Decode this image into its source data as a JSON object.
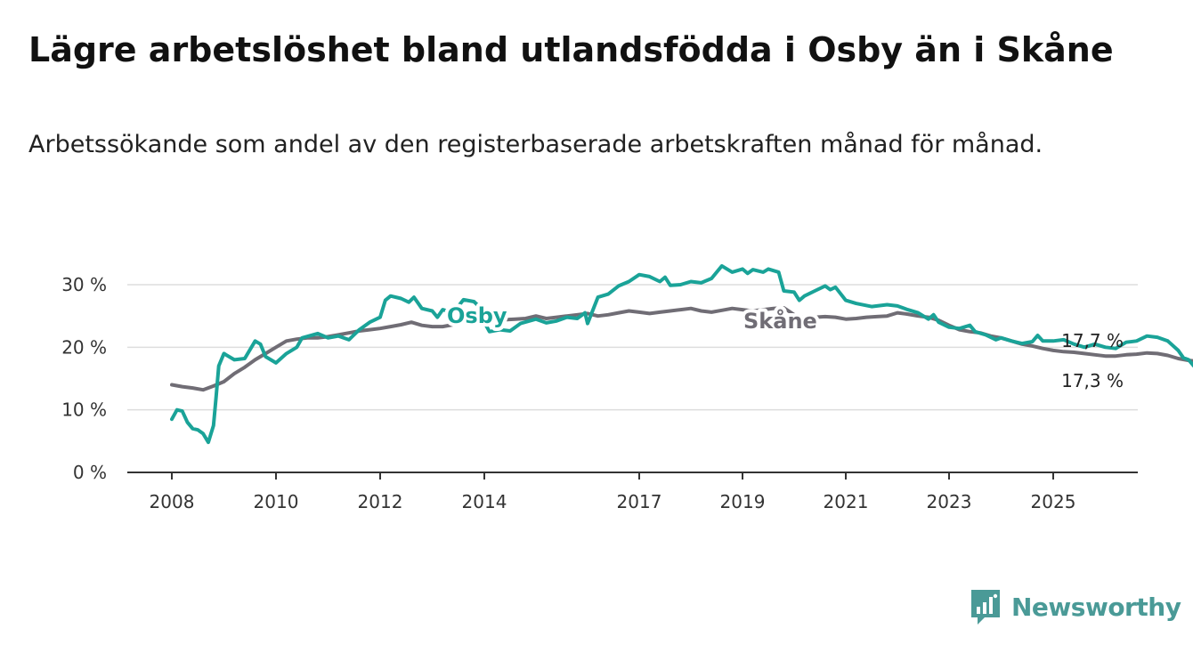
{
  "header": {
    "title": "Lägre arbetslöshet bland utlandsfödda i Osby än i Skåne",
    "subtitle": "Arbetssökande som andel av den registerbaserade arbetskraften månad för månad."
  },
  "brand": {
    "name": "Newsworthy",
    "icon": "newsworthy-logo-icon"
  },
  "colors": {
    "osby": "#1aa398",
    "skane": "#706d75",
    "grid": "#dddddd",
    "axis": "#333333"
  },
  "chart_data": {
    "type": "line",
    "title": "Lägre arbetslöshet bland utlandsfödda i Osby än i Skåne",
    "xlabel": "",
    "ylabel": "",
    "xlim": [
      2007.8,
      2026.8
    ],
    "ylim": [
      0,
      30
    ],
    "y_ticks": [
      0,
      10,
      20,
      30
    ],
    "y_tick_labels": [
      "0 %",
      "10 %",
      "20 %",
      "30 %"
    ],
    "x_ticks": [
      2008,
      2010,
      2012,
      2014,
      2017,
      2019,
      2021,
      2023,
      2025
    ],
    "x_tick_labels": [
      "2008",
      "2010",
      "2012",
      "2014",
      "2017",
      "2019",
      "2021",
      "2023",
      "2025"
    ],
    "grid": true,
    "series": [
      {
        "name": "Osby",
        "color": "#1aa398",
        "end_label": "17,3 %",
        "points": [
          [
            2008.0,
            8.5
          ],
          [
            2008.1,
            10.0
          ],
          [
            2008.2,
            9.8
          ],
          [
            2008.3,
            8.0
          ],
          [
            2008.4,
            7.0
          ],
          [
            2008.5,
            6.8
          ],
          [
            2008.6,
            6.2
          ],
          [
            2008.7,
            4.8
          ],
          [
            2008.8,
            7.5
          ],
          [
            2008.85,
            12.0
          ],
          [
            2008.9,
            17.0
          ],
          [
            2009.0,
            19.0
          ],
          [
            2009.2,
            18.0
          ],
          [
            2009.4,
            18.2
          ],
          [
            2009.6,
            21.0
          ],
          [
            2009.7,
            20.5
          ],
          [
            2009.8,
            18.5
          ],
          [
            2010.0,
            17.5
          ],
          [
            2010.2,
            19.0
          ],
          [
            2010.4,
            20.0
          ],
          [
            2010.5,
            21.5
          ],
          [
            2010.8,
            22.2
          ],
          [
            2011.0,
            21.5
          ],
          [
            2011.2,
            21.8
          ],
          [
            2011.4,
            21.2
          ],
          [
            2011.6,
            22.8
          ],
          [
            2011.8,
            24.0
          ],
          [
            2012.0,
            24.8
          ],
          [
            2012.1,
            27.5
          ],
          [
            2012.2,
            28.2
          ],
          [
            2012.4,
            27.8
          ],
          [
            2012.55,
            27.2
          ],
          [
            2012.65,
            28.0
          ],
          [
            2012.8,
            26.2
          ],
          [
            2013.0,
            25.8
          ],
          [
            2013.1,
            24.8
          ],
          [
            2013.2,
            26.0
          ],
          [
            2013.4,
            25.5
          ],
          [
            2013.6,
            27.6
          ],
          [
            2013.8,
            27.3
          ],
          [
            2013.9,
            26.5
          ],
          [
            2014.0,
            24.0
          ],
          [
            2014.1,
            22.5
          ],
          [
            2014.3,
            22.8
          ],
          [
            2014.5,
            22.6
          ],
          [
            2014.7,
            23.8
          ],
          [
            2015.0,
            24.5
          ],
          [
            2015.2,
            23.9
          ],
          [
            2015.4,
            24.2
          ],
          [
            2015.6,
            24.8
          ],
          [
            2015.8,
            24.6
          ],
          [
            2015.95,
            25.5
          ],
          [
            2016.0,
            23.8
          ],
          [
            2016.2,
            28.0
          ],
          [
            2016.4,
            28.5
          ],
          [
            2016.6,
            29.8
          ],
          [
            2016.8,
            30.5
          ],
          [
            2017.0,
            31.6
          ],
          [
            2017.2,
            31.3
          ],
          [
            2017.4,
            30.5
          ],
          [
            2017.5,
            31.2
          ],
          [
            2017.6,
            29.9
          ],
          [
            2017.8,
            30.0
          ],
          [
            2018.0,
            30.5
          ],
          [
            2018.2,
            30.3
          ],
          [
            2018.4,
            31.0
          ],
          [
            2018.6,
            33.0
          ],
          [
            2018.7,
            32.5
          ],
          [
            2018.8,
            32.0
          ],
          [
            2019.0,
            32.5
          ],
          [
            2019.1,
            31.8
          ],
          [
            2019.2,
            32.4
          ],
          [
            2019.4,
            32.0
          ],
          [
            2019.5,
            32.5
          ],
          [
            2019.7,
            32.0
          ],
          [
            2019.8,
            29.0
          ],
          [
            2020.0,
            28.8
          ],
          [
            2020.1,
            27.5
          ],
          [
            2020.2,
            28.2
          ],
          [
            2020.4,
            29.0
          ],
          [
            2020.6,
            29.8
          ],
          [
            2020.7,
            29.2
          ],
          [
            2020.8,
            29.6
          ],
          [
            2021.0,
            27.5
          ],
          [
            2021.2,
            27.0
          ],
          [
            2021.5,
            26.5
          ],
          [
            2021.8,
            26.8
          ],
          [
            2022.0,
            26.6
          ],
          [
            2022.2,
            26.0
          ],
          [
            2022.4,
            25.5
          ],
          [
            2022.6,
            24.5
          ],
          [
            2022.7,
            25.2
          ],
          [
            2022.8,
            24.0
          ],
          [
            2023.0,
            23.2
          ],
          [
            2023.2,
            23.0
          ],
          [
            2023.4,
            23.5
          ],
          [
            2023.5,
            22.5
          ],
          [
            2023.7,
            22.0
          ],
          [
            2023.9,
            21.2
          ],
          [
            2024.0,
            21.5
          ],
          [
            2024.2,
            21.0
          ],
          [
            2024.4,
            20.6
          ],
          [
            2024.6,
            20.9
          ],
          [
            2024.7,
            21.9
          ],
          [
            2024.8,
            21.0
          ],
          [
            2025.0,
            21.0
          ],
          [
            2025.2,
            21.2
          ],
          [
            2025.4,
            20.5
          ],
          [
            2025.6,
            20.0
          ],
          [
            2025.8,
            20.5
          ],
          [
            2026.0,
            20.0
          ],
          [
            2026.2,
            19.8
          ],
          [
            2026.4,
            20.8
          ],
          [
            2026.6,
            21.0
          ],
          [
            2026.8,
            21.8
          ],
          [
            2027.0,
            21.6
          ],
          [
            2027.2,
            21.0
          ],
          [
            2027.4,
            19.5
          ],
          [
            2027.5,
            18.3
          ],
          [
            2027.6,
            18.0
          ],
          [
            2027.7,
            17.0
          ],
          [
            2027.8,
            17.3
          ]
        ]
      },
      {
        "name": "Skåne",
        "color": "#706d75",
        "end_label": "17,7 %",
        "points": [
          [
            2008.0,
            14.0
          ],
          [
            2008.2,
            13.7
          ],
          [
            2008.4,
            13.5
          ],
          [
            2008.6,
            13.2
          ],
          [
            2008.8,
            13.8
          ],
          [
            2009.0,
            14.5
          ],
          [
            2009.2,
            15.8
          ],
          [
            2009.4,
            16.8
          ],
          [
            2009.6,
            18.0
          ],
          [
            2009.8,
            19.0
          ],
          [
            2010.0,
            20.0
          ],
          [
            2010.2,
            21.0
          ],
          [
            2010.4,
            21.3
          ],
          [
            2010.6,
            21.5
          ],
          [
            2010.8,
            21.5
          ],
          [
            2011.0,
            21.7
          ],
          [
            2011.2,
            22.0
          ],
          [
            2011.4,
            22.3
          ],
          [
            2011.6,
            22.6
          ],
          [
            2011.8,
            22.8
          ],
          [
            2012.0,
            23.0
          ],
          [
            2012.2,
            23.3
          ],
          [
            2012.4,
            23.6
          ],
          [
            2012.6,
            24.0
          ],
          [
            2012.8,
            23.5
          ],
          [
            2013.0,
            23.3
          ],
          [
            2013.2,
            23.3
          ],
          [
            2013.4,
            23.6
          ],
          [
            2013.6,
            24.0
          ],
          [
            2013.8,
            24.2
          ],
          [
            2014.0,
            24.5
          ],
          [
            2014.2,
            24.0
          ],
          [
            2014.4,
            24.4
          ],
          [
            2014.6,
            24.5
          ],
          [
            2014.8,
            24.6
          ],
          [
            2015.0,
            25.0
          ],
          [
            2015.2,
            24.6
          ],
          [
            2015.4,
            24.8
          ],
          [
            2015.6,
            25.0
          ],
          [
            2015.8,
            25.2
          ],
          [
            2016.0,
            25.4
          ],
          [
            2016.2,
            25.0
          ],
          [
            2016.4,
            25.2
          ],
          [
            2016.6,
            25.5
          ],
          [
            2016.8,
            25.8
          ],
          [
            2017.0,
            25.6
          ],
          [
            2017.2,
            25.4
          ],
          [
            2017.4,
            25.6
          ],
          [
            2017.6,
            25.8
          ],
          [
            2017.8,
            26.0
          ],
          [
            2018.0,
            26.2
          ],
          [
            2018.2,
            25.8
          ],
          [
            2018.4,
            25.6
          ],
          [
            2018.6,
            25.9
          ],
          [
            2018.8,
            26.2
          ],
          [
            2019.0,
            26.0
          ],
          [
            2019.2,
            25.8
          ],
          [
            2019.4,
            26.0
          ],
          [
            2019.6,
            26.2
          ],
          [
            2019.8,
            26.3
          ],
          [
            2020.0,
            25.2
          ],
          [
            2020.2,
            24.7
          ],
          [
            2020.4,
            24.8
          ],
          [
            2020.6,
            24.9
          ],
          [
            2020.8,
            24.8
          ],
          [
            2021.0,
            24.5
          ],
          [
            2021.2,
            24.6
          ],
          [
            2021.4,
            24.8
          ],
          [
            2021.6,
            24.9
          ],
          [
            2021.8,
            25.0
          ],
          [
            2022.0,
            25.5
          ],
          [
            2022.2,
            25.3
          ],
          [
            2022.4,
            25.0
          ],
          [
            2022.6,
            24.8
          ],
          [
            2022.8,
            24.3
          ],
          [
            2023.0,
            23.5
          ],
          [
            2023.2,
            22.8
          ],
          [
            2023.4,
            22.5
          ],
          [
            2023.6,
            22.3
          ],
          [
            2023.8,
            21.8
          ],
          [
            2024.0,
            21.5
          ],
          [
            2024.2,
            21.0
          ],
          [
            2024.4,
            20.5
          ],
          [
            2024.6,
            20.2
          ],
          [
            2024.8,
            19.8
          ],
          [
            2025.0,
            19.5
          ],
          [
            2025.2,
            19.3
          ],
          [
            2025.4,
            19.2
          ],
          [
            2025.6,
            19.0
          ],
          [
            2025.8,
            18.8
          ],
          [
            2026.0,
            18.6
          ],
          [
            2026.2,
            18.6
          ],
          [
            2026.4,
            18.8
          ],
          [
            2026.6,
            18.9
          ],
          [
            2026.8,
            19.1
          ],
          [
            2027.0,
            19.0
          ],
          [
            2027.2,
            18.7
          ],
          [
            2027.4,
            18.2
          ],
          [
            2027.6,
            17.9
          ],
          [
            2027.8,
            17.7
          ]
        ]
      }
    ]
  }
}
